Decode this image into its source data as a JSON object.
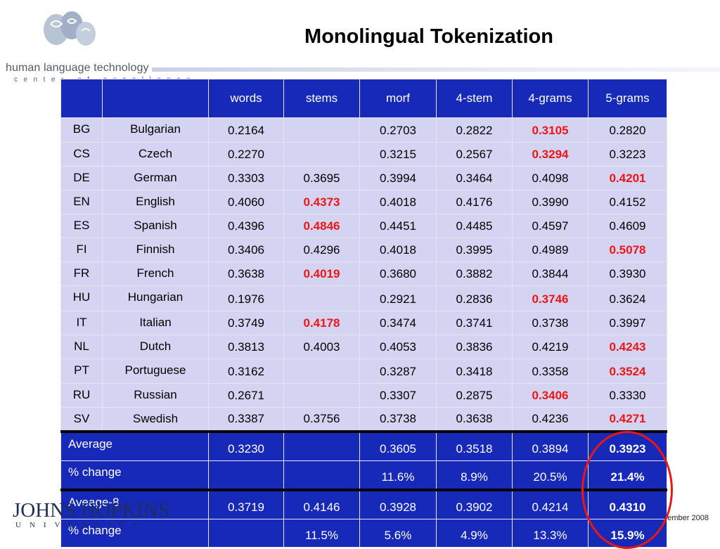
{
  "header": {
    "title": "Monolingual Tokenization",
    "logo_text": "human language technology",
    "logo_subtext": "center of excellence"
  },
  "footer": {
    "university_text": "JOHNS HOPKINS",
    "university_sub": "UNIVERSITY",
    "date": "ember 2008"
  },
  "colors": {
    "header_bg": "#1629b8",
    "row_bg": "#d4d4f2",
    "highlight": "#ee1515"
  },
  "table": {
    "columns": [
      "",
      "",
      "words",
      "stems",
      "morf",
      "4-stem",
      "4-grams",
      "5-grams"
    ],
    "rows": [
      {
        "code": "BG",
        "lang": "Bulgarian",
        "vals": [
          "0.2164",
          "",
          "0.2703",
          "0.2822",
          "0.3105",
          "0.2820"
        ],
        "best": 4
      },
      {
        "code": "CS",
        "lang": "Czech",
        "vals": [
          "0.2270",
          "",
          "0.3215",
          "0.2567",
          "0.3294",
          "0.3223"
        ],
        "best": 4
      },
      {
        "code": "DE",
        "lang": "German",
        "vals": [
          "0.3303",
          "0.3695",
          "0.3994",
          "0.3464",
          "0.4098",
          "0.4201"
        ],
        "best": 5
      },
      {
        "code": "EN",
        "lang": "English",
        "vals": [
          "0.4060",
          "0.4373",
          "0.4018",
          "0.4176",
          "0.3990",
          "0.4152"
        ],
        "best": 1
      },
      {
        "code": "ES",
        "lang": "Spanish",
        "vals": [
          "0.4396",
          "0.4846",
          "0.4451",
          "0.4485",
          "0.4597",
          "0.4609"
        ],
        "best": 1
      },
      {
        "code": "FI",
        "lang": "Finnish",
        "vals": [
          "0.3406",
          "0.4296",
          "0.4018",
          "0.3995",
          "0.4989",
          "0.5078"
        ],
        "best": 5
      },
      {
        "code": "FR",
        "lang": "French",
        "vals": [
          "0.3638",
          "0.4019",
          "0.3680",
          "0.3882",
          "0.3844",
          "0.3930"
        ],
        "best": 1
      },
      {
        "code": "HU",
        "lang": "Hungarian",
        "vals": [
          "0.1976",
          "",
          "0.2921",
          "0.2836",
          "0.3746",
          "0.3624"
        ],
        "best": 4
      },
      {
        "code": "IT",
        "lang": "Italian",
        "vals": [
          "0.3749",
          "0.4178",
          "0.3474",
          "0.3741",
          "0.3738",
          "0.3997"
        ],
        "best": 1
      },
      {
        "code": "NL",
        "lang": "Dutch",
        "vals": [
          "0.3813",
          "0.4003",
          "0.4053",
          "0.3836",
          "0.4219",
          "0.4243"
        ],
        "best": 5
      },
      {
        "code": "PT",
        "lang": "Portuguese",
        "vals": [
          "0.3162",
          "",
          "0.3287",
          "0.3418",
          "0.3358",
          "0.3524"
        ],
        "best": 5
      },
      {
        "code": "RU",
        "lang": "Russian",
        "vals": [
          "0.2671",
          "",
          "0.3307",
          "0.2875",
          "0.3406",
          "0.3330"
        ],
        "best": 4
      },
      {
        "code": "SV",
        "lang": "Swedish",
        "vals": [
          "0.3387",
          "0.3756",
          "0.3738",
          "0.3638",
          "0.4236",
          "0.4271"
        ],
        "best": 5
      }
    ],
    "summary": [
      {
        "label": "Average",
        "vals": [
          "0.3230",
          "",
          "0.3605",
          "0.3518",
          "0.3894",
          "0.3923"
        ],
        "thick": true
      },
      {
        "label": "% change",
        "vals": [
          "",
          "",
          "11.6%",
          "8.9%",
          "20.5%",
          "21.4%"
        ],
        "thick": false
      },
      {
        "label": "Aveage-8",
        "vals": [
          "0.3719",
          "0.4146",
          "0.3928",
          "0.3902",
          "0.4214",
          "0.4310"
        ],
        "thick": true
      },
      {
        "label": "% change",
        "vals": [
          "",
          "11.5%",
          "5.6%",
          "4.9%",
          "13.3%",
          "15.9%"
        ],
        "thick": false
      }
    ]
  }
}
